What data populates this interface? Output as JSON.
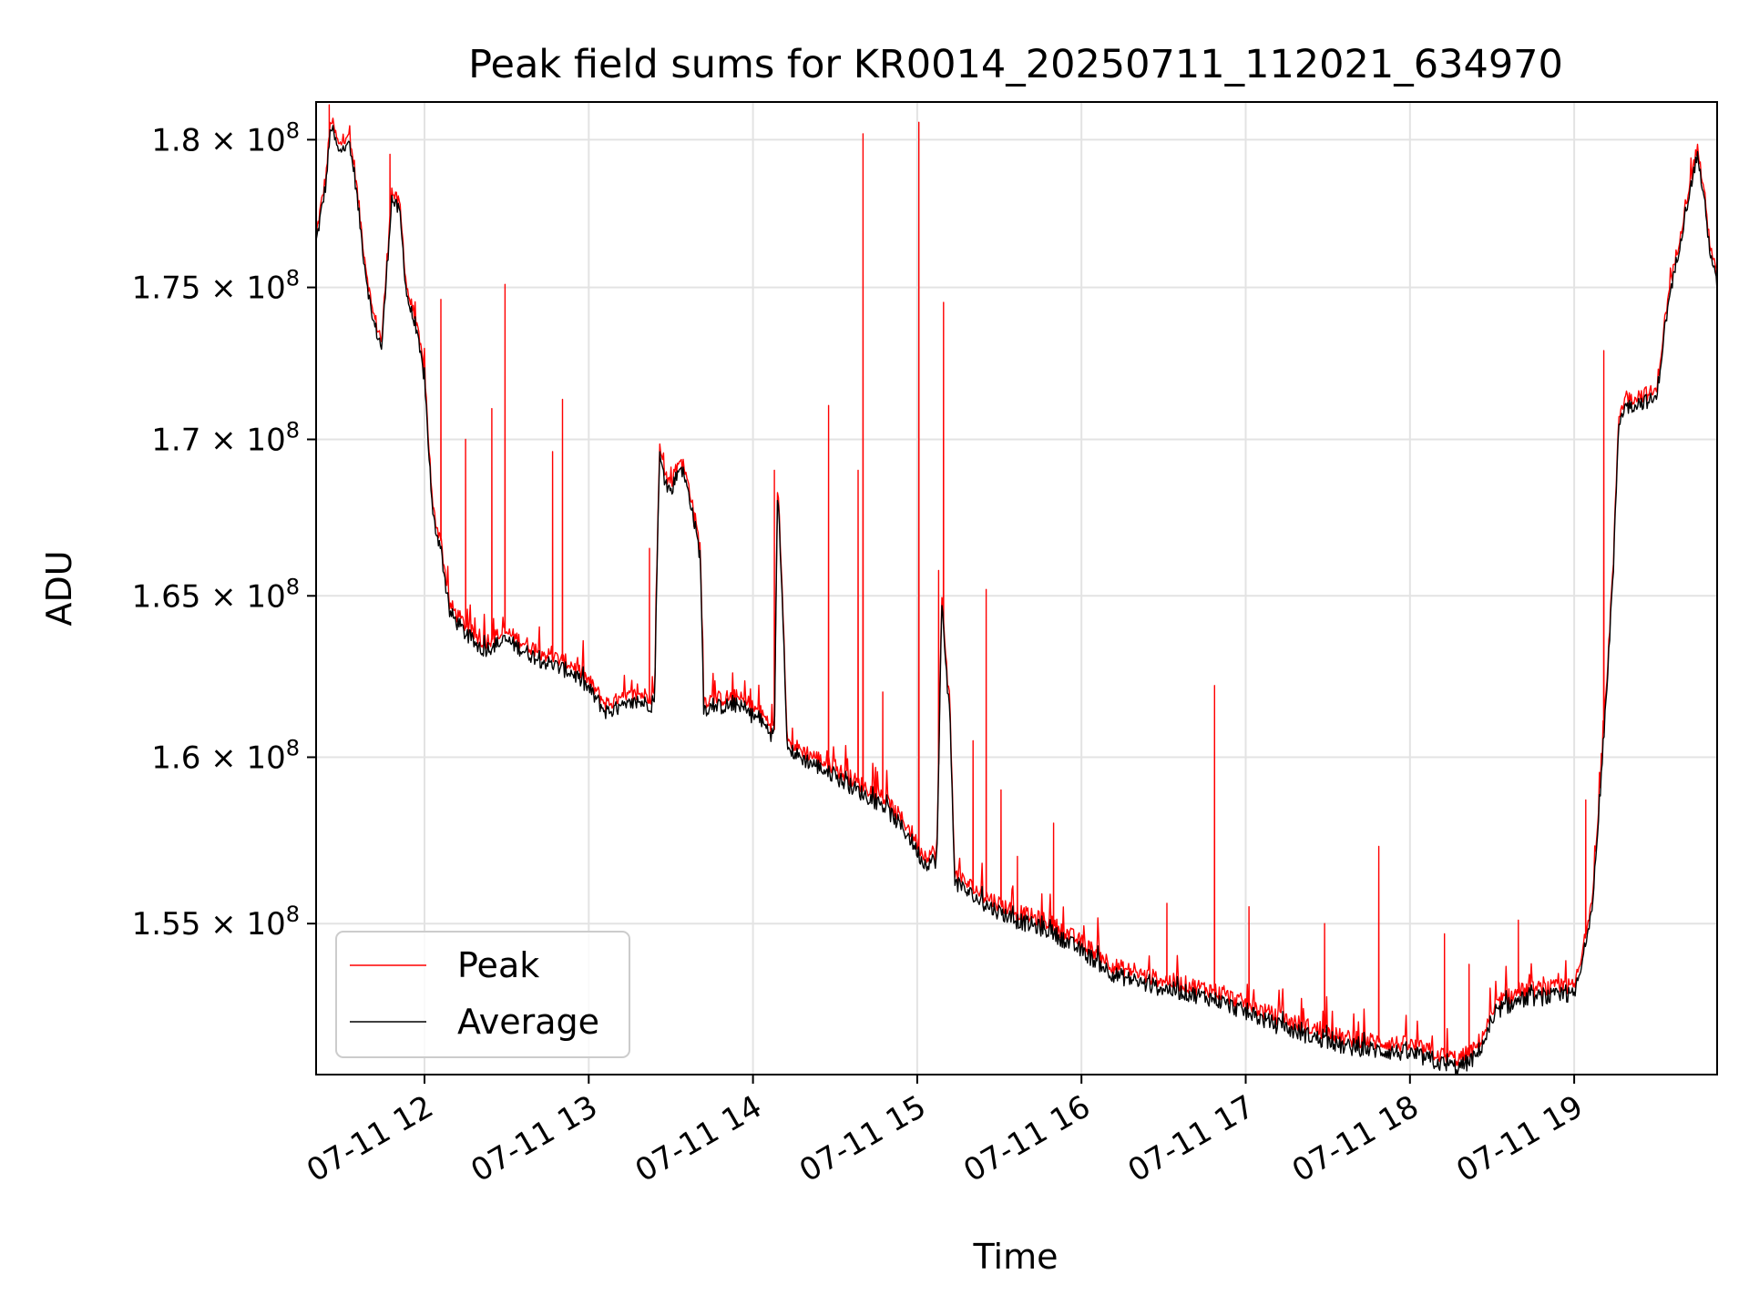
{
  "chart_data": {
    "type": "line",
    "title": "Peak field sums for KR0014_20250711_112021_634970",
    "xlabel": "Time",
    "ylabel": "ADU",
    "x_unit": "hours on 2025-07-11",
    "xlim": [
      11.34,
      19.87
    ],
    "ylim": [
      150600000,
      181300000
    ],
    "yscale": "log",
    "grid": true,
    "legend_position": "lower-left",
    "x_ticks": [
      {
        "value": 12,
        "label": "07-11 12"
      },
      {
        "value": 13,
        "label": "07-11 13"
      },
      {
        "value": 14,
        "label": "07-11 14"
      },
      {
        "value": 15,
        "label": "07-11 15"
      },
      {
        "value": 16,
        "label": "07-11 16"
      },
      {
        "value": 17,
        "label": "07-11 17"
      },
      {
        "value": 18,
        "label": "07-11 18"
      },
      {
        "value": 19,
        "label": "07-11 19"
      }
    ],
    "y_ticks": [
      {
        "value": 155000000,
        "mantissa": "1.55",
        "exponent": "8"
      },
      {
        "value": 160000000,
        "mantissa": "1.6",
        "exponent": "8"
      },
      {
        "value": 165000000,
        "mantissa": "1.65",
        "exponent": "8"
      },
      {
        "value": 170000000,
        "mantissa": "1.7",
        "exponent": "8"
      },
      {
        "value": 175000000,
        "mantissa": "1.75",
        "exponent": "8"
      },
      {
        "value": 180000000,
        "mantissa": "1.8",
        "exponent": "8"
      }
    ],
    "series": [
      {
        "name": "Peak",
        "color": "#ff0000",
        "offset": 250000,
        "spikes": [
          [
            11.42,
            181200000
          ],
          [
            11.79,
            179500000
          ],
          [
            12.1,
            174600000
          ],
          [
            12.25,
            170000000
          ],
          [
            12.41,
            171000000
          ],
          [
            12.49,
            175100000
          ],
          [
            12.78,
            169600000
          ],
          [
            12.84,
            171300000
          ],
          [
            13.37,
            166500000
          ],
          [
            13.64,
            167200000
          ],
          [
            14.13,
            169000000
          ],
          [
            14.46,
            171100000
          ],
          [
            14.64,
            169000000
          ],
          [
            14.67,
            180200000
          ],
          [
            14.79,
            162000000
          ],
          [
            15.01,
            180600000
          ],
          [
            15.13,
            165800000
          ],
          [
            15.16,
            174500000
          ],
          [
            15.34,
            160500000
          ],
          [
            15.42,
            165200000
          ],
          [
            15.51,
            159000000
          ],
          [
            15.61,
            157000000
          ],
          [
            15.83,
            158000000
          ],
          [
            16.52,
            155600000
          ],
          [
            16.81,
            162200000
          ],
          [
            17.02,
            155500000
          ],
          [
            17.48,
            155000000
          ],
          [
            17.81,
            157300000
          ],
          [
            18.21,
            154700000
          ],
          [
            18.36,
            153800000
          ],
          [
            18.66,
            155100000
          ],
          [
            19.07,
            158700000
          ],
          [
            19.18,
            172900000
          ]
        ]
      },
      {
        "name": "Average",
        "color": "#000000",
        "offset": 0,
        "anchors": [
          [
            11.34,
            176500000
          ],
          [
            11.4,
            178500000
          ],
          [
            11.43,
            180500000
          ],
          [
            11.48,
            179500000
          ],
          [
            11.53,
            180000000
          ],
          [
            11.57,
            179000000
          ],
          [
            11.63,
            176000000
          ],
          [
            11.68,
            174000000
          ],
          [
            11.74,
            173000000
          ],
          [
            11.8,
            178000000
          ],
          [
            11.85,
            177500000
          ],
          [
            11.89,
            174800000
          ],
          [
            11.95,
            173500000
          ],
          [
            12.0,
            172000000
          ],
          [
            12.05,
            167500000
          ],
          [
            12.1,
            166500000
          ],
          [
            12.15,
            164500000
          ],
          [
            12.25,
            163800000
          ],
          [
            12.35,
            163300000
          ],
          [
            12.5,
            163600000
          ],
          [
            12.7,
            163000000
          ],
          [
            12.9,
            162600000
          ],
          [
            13.0,
            162100000
          ],
          [
            13.1,
            161400000
          ],
          [
            13.2,
            161500000
          ],
          [
            13.3,
            161700000
          ],
          [
            13.4,
            161600000
          ],
          [
            13.43,
            169500000
          ],
          [
            13.46,
            168700000
          ],
          [
            13.5,
            168300000
          ],
          [
            13.56,
            169200000
          ],
          [
            13.62,
            168000000
          ],
          [
            13.68,
            166200000
          ],
          [
            13.7,
            161500000
          ],
          [
            13.9,
            161600000
          ],
          [
            14.05,
            161100000
          ],
          [
            14.13,
            160600000
          ],
          [
            14.15,
            168500000
          ],
          [
            14.18,
            164800000
          ],
          [
            14.21,
            160200000
          ],
          [
            14.4,
            159700000
          ],
          [
            14.6,
            159100000
          ],
          [
            14.8,
            158500000
          ],
          [
            14.95,
            157600000
          ],
          [
            15.04,
            156800000
          ],
          [
            15.12,
            156900000
          ],
          [
            15.15,
            164800000
          ],
          [
            15.2,
            161000000
          ],
          [
            15.23,
            156200000
          ],
          [
            15.4,
            155600000
          ],
          [
            15.6,
            155100000
          ],
          [
            15.8,
            154800000
          ],
          [
            16.0,
            154200000
          ],
          [
            16.2,
            153500000
          ],
          [
            16.4,
            153200000
          ],
          [
            16.6,
            153000000
          ],
          [
            16.8,
            152800000
          ],
          [
            17.0,
            152400000
          ],
          [
            17.2,
            152000000
          ],
          [
            17.4,
            151700000
          ],
          [
            17.6,
            151400000
          ],
          [
            17.8,
            151300000
          ],
          [
            18.0,
            151200000
          ],
          [
            18.2,
            150900000
          ],
          [
            18.3,
            150800000
          ],
          [
            18.4,
            151100000
          ],
          [
            18.55,
            152500000
          ],
          [
            18.7,
            152800000
          ],
          [
            19.0,
            152900000
          ],
          [
            19.05,
            153800000
          ],
          [
            19.12,
            156000000
          ],
          [
            19.18,
            160500000
          ],
          [
            19.24,
            166000000
          ],
          [
            19.27,
            170500000
          ],
          [
            19.3,
            171000000
          ],
          [
            19.4,
            171200000
          ],
          [
            19.5,
            171300000
          ],
          [
            19.56,
            174000000
          ],
          [
            19.62,
            175800000
          ],
          [
            19.7,
            178200000
          ],
          [
            19.75,
            179500000
          ],
          [
            19.79,
            178000000
          ],
          [
            19.82,
            176500000
          ],
          [
            19.87,
            175000000
          ]
        ]
      }
    ]
  }
}
